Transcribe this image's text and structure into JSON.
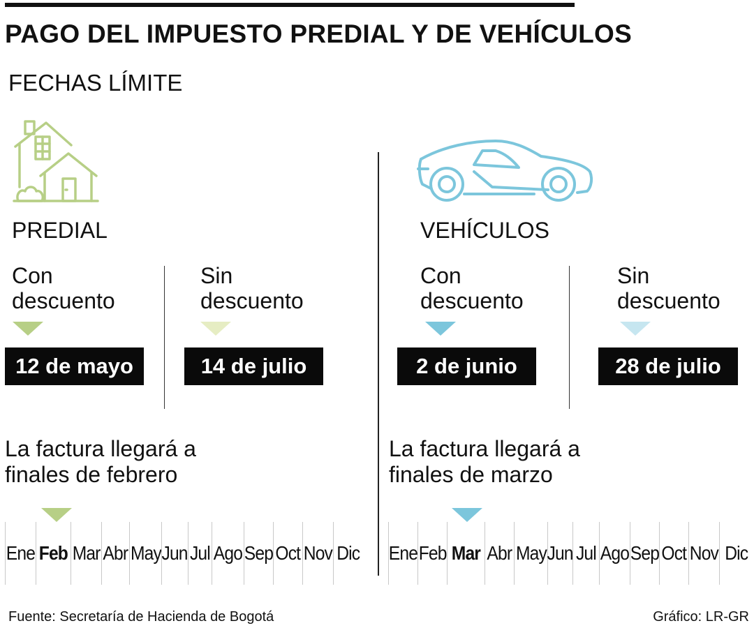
{
  "title": "PAGO DEL IMPUESTO PREDIAL Y DE VEHÍCULOS",
  "subtitle": "FECHAS LÍMITE",
  "colors": {
    "predial_dark": "#b7cf86",
    "predial_light": "#e6edc3",
    "vehiculos_dark": "#7cc6dc",
    "vehiculos_light": "#c6e6f0"
  },
  "predial": {
    "icon": "house-icon",
    "label": "PREDIAL",
    "con": {
      "line1": "Con",
      "line2": "descuento",
      "date": "12 de mayo"
    },
    "sin": {
      "line1": "Sin",
      "line2": "descuento",
      "date": "14 de julio"
    },
    "note": {
      "line1": "La factura llegará a",
      "line2": "finales de febrero"
    },
    "current_month": "Feb"
  },
  "vehiculos": {
    "icon": "car-icon",
    "label": "VEHÍCULOS",
    "con": {
      "line1": "Con",
      "line2": "descuento",
      "date": "2 de junio"
    },
    "sin": {
      "line1": "Sin",
      "line2": "descuento",
      "date": "28 de julio"
    },
    "note": {
      "line1": "La factura llegará a",
      "line2": "finales de marzo"
    },
    "current_month": "Mar"
  },
  "months": [
    "Ene",
    "Feb",
    "Mar",
    "Abr",
    "May",
    "Jun",
    "Jul",
    "Ago",
    "Sep",
    "Oct",
    "Nov",
    "Dic"
  ],
  "footer": {
    "source": "Fuente: Secretaría de Hacienda de Bogotá",
    "credit": "Gráfico: LR-GR"
  }
}
